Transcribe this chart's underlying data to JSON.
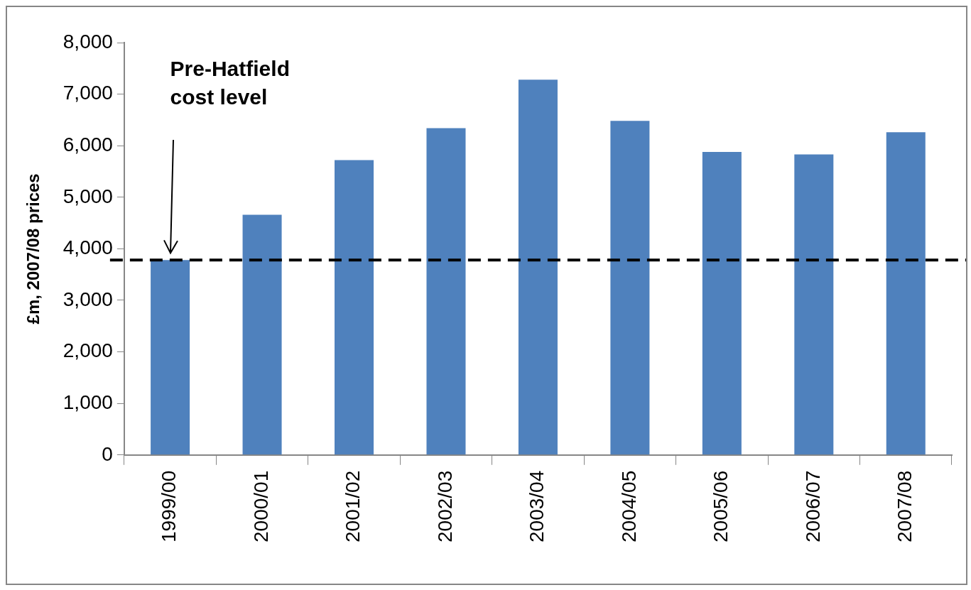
{
  "chart_data": {
    "type": "bar",
    "ylabel": "£m, 2007/08 prices",
    "categories": [
      "1999/00",
      "2000/01",
      "2001/02",
      "2002/03",
      "2003/04",
      "2004/05",
      "2005/06",
      "2006/07",
      "2007/08"
    ],
    "values": [
      3780,
      4660,
      5720,
      6340,
      7280,
      6480,
      5880,
      5830,
      6260
    ],
    "color": "#4f81bd",
    "ylim": [
      0,
      8000
    ],
    "yticks": [
      {
        "value": 0,
        "label": "0"
      },
      {
        "value": 1000,
        "label": "1,000"
      },
      {
        "value": 2000,
        "label": "2,000"
      },
      {
        "value": 3000,
        "label": "3,000"
      },
      {
        "value": 4000,
        "label": "4,000"
      },
      {
        "value": 5000,
        "label": "5,000"
      },
      {
        "value": 6000,
        "label": "6,000"
      },
      {
        "value": 7000,
        "label": "7,000"
      },
      {
        "value": 8000,
        "label": "8,000"
      }
    ],
    "grid": false,
    "legend": false,
    "ref_lines": [
      {
        "axis": "y",
        "value": 3780,
        "label": null,
        "color": "#000000",
        "line_style": "dashed"
      }
    ],
    "annotations": [
      "Pre-Hatfield cost level"
    ]
  }
}
